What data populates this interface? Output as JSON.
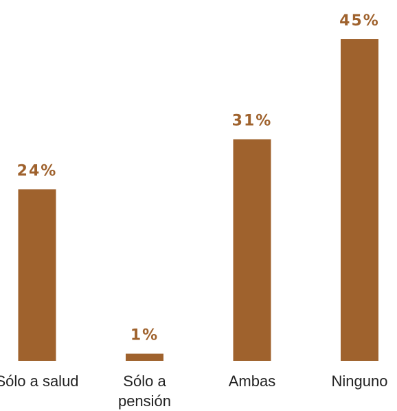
{
  "chart_data": {
    "type": "bar",
    "categories": [
      "Sólo a salud",
      "Sólo a pensión",
      "Ambas",
      "Ninguno"
    ],
    "values": [
      24,
      1,
      31,
      45
    ],
    "value_labels": [
      "24%",
      "1%",
      "31%",
      "45%"
    ],
    "color": "#9f622d"
  }
}
